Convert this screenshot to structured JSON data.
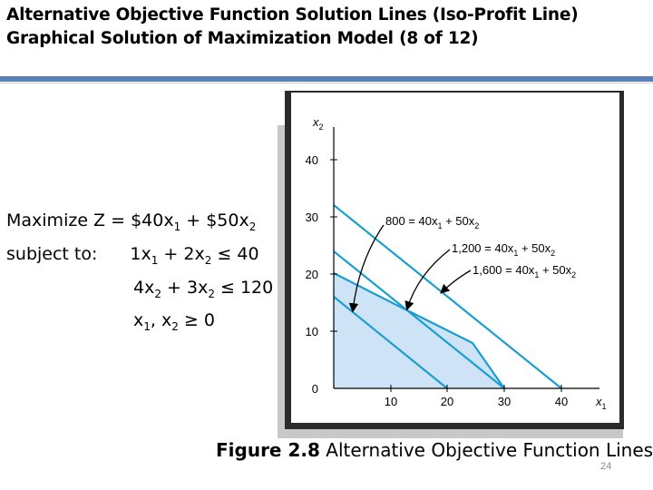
{
  "title": {
    "line1": "Alternative Objective Function Solution Lines (Iso-Profit Line)",
    "line2": "Graphical Solution of Maximization Model (8 of 12)"
  },
  "model": {
    "objective": {
      "prefix": "Maximize Z = $40x",
      "sub1": "1",
      "mid": " + $50x",
      "sub2": "2"
    },
    "subject_label": "subject to:",
    "constraint1": {
      "a": "1x",
      "s1": "1",
      "b": " + 2x",
      "s2": "2",
      "c": " ≤ 40"
    },
    "constraint2": {
      "a": "4x",
      "s1": "2",
      "b": " + 3x",
      "s2": "2",
      "c": " ≤ 120"
    },
    "nonneg": {
      "a": "x",
      "s1": "1",
      "b": ", x",
      "s2": "2",
      "c": " ≥ 0"
    }
  },
  "diagram": {
    "axes": {
      "x_var": "x",
      "x_sub": "1",
      "y_var": "x",
      "y_sub": "2"
    },
    "x_ticks": [
      "0",
      "10",
      "20",
      "30",
      "40"
    ],
    "y_ticks": [
      "0",
      "10",
      "20",
      "30",
      "40"
    ],
    "iso_lines": [
      {
        "value": "800 = 40x",
        "s1": "1",
        "mid": " + 50x",
        "s2": "2"
      },
      {
        "value": "1,200 = 40x",
        "s1": "1",
        "mid": " + 50x",
        "s2": "2"
      },
      {
        "value": "1,600 = 40x",
        "s1": "1",
        "mid": " + 50x",
        "s2": "2"
      }
    ],
    "colors": {
      "line": "#1a9fd0",
      "region": "#cfe3f7",
      "axis": "#000000"
    }
  },
  "caption": {
    "bold": "Figure 2.8",
    "text": " Alternative Objective Function Lines"
  },
  "page_number": "24"
}
